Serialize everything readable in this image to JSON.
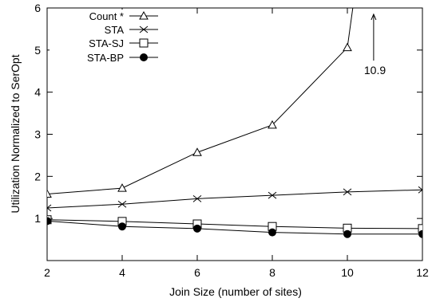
{
  "chart_data": {
    "type": "line",
    "xlabel": "Join Size (number of sites)",
    "ylabel": "Utilization Normalized to SerOpt",
    "xlim": [
      2,
      12
    ],
    "ylim": [
      0,
      6
    ],
    "x_ticks": [
      "2",
      "4",
      "6",
      "8",
      "10",
      "12"
    ],
    "y_ticks": [
      "1",
      "2",
      "3",
      "4",
      "5",
      "6"
    ],
    "grid": false,
    "legend_position": "top-left",
    "series": [
      {
        "name": "Count *",
        "marker": "triangle",
        "x": [
          2,
          4,
          6,
          8,
          10,
          10.9
        ],
        "y": [
          1.58,
          1.72,
          2.57,
          3.22,
          5.06,
          10.9
        ]
      },
      {
        "name": "STA",
        "marker": "cross",
        "x": [
          2,
          4,
          6,
          8,
          10,
          12
        ],
        "y": [
          1.25,
          1.34,
          1.47,
          1.55,
          1.63,
          1.68
        ]
      },
      {
        "name": "STA-SJ",
        "marker": "square",
        "x": [
          2,
          4,
          6,
          8,
          10,
          12
        ],
        "y": [
          0.97,
          0.93,
          0.87,
          0.81,
          0.77,
          0.76
        ]
      },
      {
        "name": "STA-BP",
        "marker": "filled-circle",
        "x": [
          2,
          4,
          6,
          8,
          10,
          12
        ],
        "y": [
          0.94,
          0.81,
          0.76,
          0.67,
          0.63,
          0.63
        ]
      }
    ],
    "annotations": [
      {
        "text": "10.9",
        "arrow_x": 10.7,
        "arrow_y_from": 4.75,
        "arrow_y_to": 5.85
      }
    ]
  }
}
